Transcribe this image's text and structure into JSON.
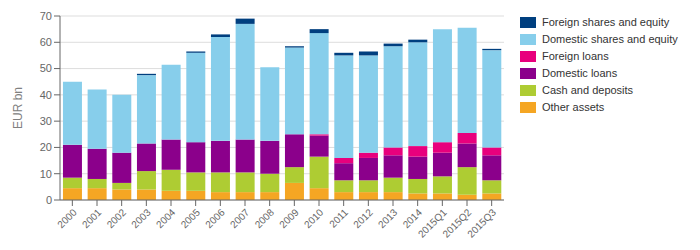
{
  "chart_data": {
    "type": "bar",
    "stacked": true,
    "ylabel": "EUR bn",
    "categories": [
      "2000",
      "2001",
      "2002",
      "2003",
      "2004",
      "2005",
      "2006",
      "2007",
      "2008",
      "2009",
      "2010",
      "2011",
      "2012",
      "2013",
      "2014",
      "2015Q1",
      "2015Q2",
      "2015Q3"
    ],
    "series": [
      {
        "name": "Other assets",
        "color": "#F5A623",
        "values": [
          4.5,
          4.5,
          4.0,
          4.0,
          3.5,
          3.5,
          3.0,
          3.0,
          3.0,
          6.5,
          4.5,
          3.0,
          3.0,
          3.0,
          2.5,
          2.5,
          2.0,
          2.5
        ]
      },
      {
        "name": "Cash and deposits",
        "color": "#AECC33",
        "values": [
          4.0,
          3.5,
          2.5,
          7.0,
          8.0,
          7.0,
          7.5,
          7.5,
          7.0,
          6.0,
          12.0,
          4.5,
          4.5,
          5.5,
          5.5,
          6.5,
          10.5,
          5.0
        ]
      },
      {
        "name": "Domestic loans",
        "color": "#8B008B",
        "values": [
          12.5,
          11.5,
          11.5,
          10.5,
          11.5,
          11.5,
          12.0,
          12.5,
          12.5,
          12.5,
          8.0,
          6.5,
          8.5,
          8.5,
          8.5,
          9.0,
          9.0,
          9.5
        ]
      },
      {
        "name": "Foreign loans",
        "color": "#E8007D",
        "values": [
          0.0,
          0.0,
          0.0,
          0.0,
          0.0,
          0.0,
          0.0,
          0.0,
          0.0,
          0.0,
          0.5,
          2.0,
          2.0,
          3.0,
          4.0,
          4.0,
          4.0,
          3.0
        ]
      },
      {
        "name": "Domestic shares and equity",
        "color": "#87CEEB",
        "values": [
          24.0,
          22.5,
          22.0,
          26.0,
          28.5,
          34.0,
          39.5,
          44.0,
          28.0,
          33.0,
          38.5,
          39.0,
          37.0,
          38.5,
          39.5,
          43.0,
          40.0,
          37.0
        ]
      },
      {
        "name": "Foreign shares and equity",
        "color": "#003F7F",
        "values": [
          0.0,
          0.0,
          0.0,
          0.5,
          0.0,
          0.5,
          1.0,
          2.0,
          0.0,
          0.5,
          1.5,
          1.0,
          1.5,
          1.0,
          1.0,
          0.0,
          0.0,
          0.5
        ]
      }
    ],
    "ylim": [
      0,
      70
    ],
    "yticks": [
      0,
      10,
      20,
      30,
      40,
      50,
      60,
      70
    ],
    "grid": true,
    "legend": "right"
  }
}
